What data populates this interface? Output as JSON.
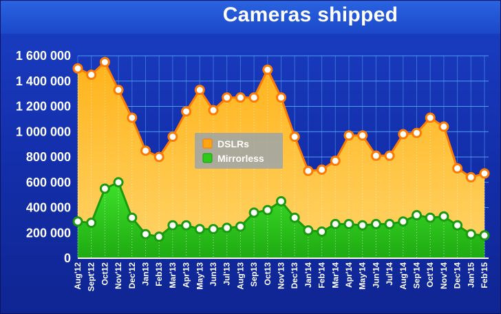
{
  "colors": {
    "dslr": "#ffa412",
    "dslr_stroke": "#ff7a00",
    "mirrorless": "#2ccb1a",
    "mirrorless_stroke": "#1a9a0e",
    "grid": "#5fb6ff"
  },
  "chart_data": {
    "type": "area",
    "title": "Cameras shipped",
    "xlabel": "",
    "ylabel": "",
    "ylim": [
      0,
      1600000
    ],
    "yticks": [
      0,
      200000,
      400000,
      600000,
      800000,
      1000000,
      1200000,
      1400000,
      1600000
    ],
    "ytick_labels": [
      "0",
      "200 000",
      "400 000",
      "600 000",
      "800 000",
      "1 000 000",
      "1 200 000",
      "1 400 000",
      "1 600 000"
    ],
    "grid": true,
    "legend_position": "center",
    "categories": [
      "Aug'12",
      "Sept'12",
      "Oct12",
      "Nov'12",
      "Dec'12",
      "Jan13",
      "Feb13",
      "Mar'13",
      "Apr'13",
      "May'13",
      "Jun13",
      "Jul'13",
      "Aug'13",
      "Sep13",
      "Oct13",
      "Nov'13",
      "Dec'13",
      "Jan'14",
      "Feb'14",
      "Mar'14",
      "Apr'14",
      "May'14",
      "Jun'14",
      "Jul'14",
      "Aug'14",
      "Sep'14",
      "Oct'14",
      "Nov'14",
      "Dec'14",
      "Jan'15",
      "Feb'15"
    ],
    "series": [
      {
        "name": "DSLRs",
        "values": [
          1500000,
          1450000,
          1550000,
          1330000,
          1110000,
          850000,
          800000,
          960000,
          1160000,
          1330000,
          1170000,
          1270000,
          1270000,
          1270000,
          1490000,
          1270000,
          960000,
          690000,
          700000,
          770000,
          970000,
          970000,
          810000,
          810000,
          980000,
          990000,
          1110000,
          1040000,
          710000,
          640000,
          670000
        ]
      },
      {
        "name": "Mirrorless",
        "values": [
          290000,
          280000,
          550000,
          600000,
          320000,
          190000,
          170000,
          260000,
          260000,
          230000,
          230000,
          240000,
          250000,
          360000,
          380000,
          450000,
          320000,
          220000,
          210000,
          270000,
          270000,
          260000,
          270000,
          270000,
          290000,
          340000,
          320000,
          330000,
          260000,
          190000,
          180000
        ]
      }
    ]
  }
}
